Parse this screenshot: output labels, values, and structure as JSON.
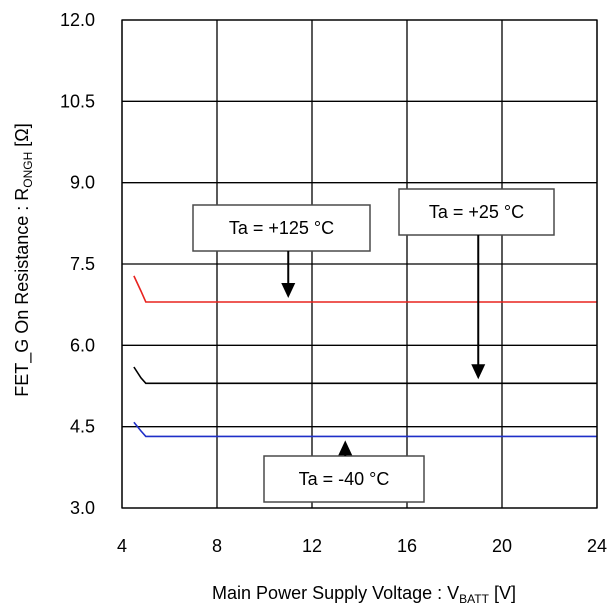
{
  "chart_data": {
    "type": "line",
    "title": "",
    "xlabel": "Main Power Supply Voltage : V",
    "xlabel_sub": "BATT",
    "xlabel_unit": " [V]",
    "ylabel": "FET_G On Resistance : R",
    "ylabel_sub": "ONGH",
    "ylabel_unit": " [Ω]",
    "xlim": [
      4,
      24
    ],
    "ylim": [
      3.0,
      12.0
    ],
    "xticks": [
      4,
      8,
      12,
      16,
      20,
      24
    ],
    "xtick_labels": [
      "4",
      "8",
      "12",
      "16",
      "20",
      "24"
    ],
    "yticks": [
      3.0,
      4.5,
      6.0,
      7.5,
      9.0,
      10.5,
      12.0
    ],
    "ytick_labels": [
      "3.0",
      "4.5",
      "6.0",
      "7.5",
      "9.0",
      "10.5",
      "12.0"
    ],
    "grid": true,
    "series": [
      {
        "color": "#e8231f",
        "x": [
          4.5,
          4.8,
          5.0,
          24
        ],
        "y": [
          7.28,
          7.0,
          6.8,
          6.8
        ]
      },
      {
        "color": "#000000",
        "x": [
          4.5,
          4.8,
          5.0,
          24
        ],
        "y": [
          5.6,
          5.4,
          5.3,
          5.3
        ]
      },
      {
        "color": "#1f2fc8",
        "x": [
          4.5,
          4.8,
          5.0,
          24
        ],
        "y": [
          4.58,
          4.42,
          4.32,
          4.32
        ]
      }
    ],
    "annotations": [
      {
        "text": "Ta = +125 °C",
        "target_series": 0,
        "arrow": "down",
        "x": 11.0
      },
      {
        "text": "Ta = +25 °C",
        "target_series": 1,
        "arrow": "down",
        "x": 19.0
      },
      {
        "text": "Ta = -40 °C",
        "target_series": 2,
        "arrow": "up",
        "x": 13.4
      }
    ]
  }
}
